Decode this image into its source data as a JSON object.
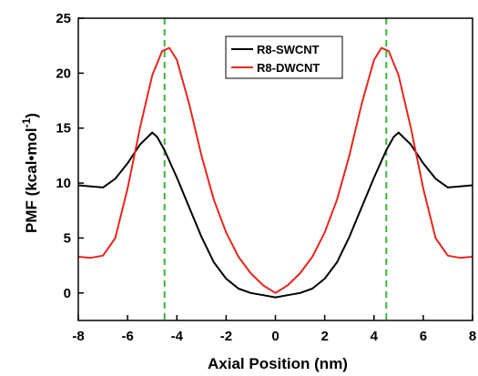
{
  "chart_data": {
    "type": "line",
    "title": "",
    "xlabel": "Axial Position (nm)",
    "ylabel_main": "PMF (kcal•mol",
    "ylabel_sup": "-1",
    "ylabel_close": ")",
    "xlim": [
      -8,
      8
    ],
    "ylim": [
      -2.5,
      25
    ],
    "xticks": [
      -8,
      -6,
      -4,
      -2,
      0,
      2,
      4,
      6,
      8
    ],
    "yticks": [
      0,
      5,
      10,
      15,
      20,
      25
    ],
    "legend_position": "top-center",
    "vlines": {
      "x": [
        -4.5,
        4.5
      ],
      "color": "#3cb33c",
      "style": "dashed"
    },
    "series": [
      {
        "name": "R8-SWCNT",
        "color": "#000000",
        "x": [
          -8,
          -7.5,
          -7,
          -6.5,
          -6,
          -5.5,
          -5,
          -4.8,
          -4.5,
          -4,
          -3.5,
          -3,
          -2.5,
          -2,
          -1.5,
          -1,
          -0.5,
          0,
          0.5,
          1,
          1.5,
          2,
          2.5,
          3,
          3.5,
          4,
          4.5,
          4.8,
          5,
          5.5,
          6,
          6.5,
          7,
          7.5,
          8
        ],
        "values": [
          9.8,
          9.7,
          9.6,
          10.4,
          11.8,
          13.5,
          14.6,
          14.2,
          13.0,
          10.5,
          7.8,
          5.1,
          2.8,
          1.3,
          0.4,
          0.0,
          -0.2,
          -0.4,
          -0.2,
          0.0,
          0.4,
          1.3,
          2.8,
          5.1,
          7.8,
          10.5,
          13.0,
          14.2,
          14.6,
          13.5,
          11.8,
          10.4,
          9.6,
          9.7,
          9.8
        ]
      },
      {
        "name": "R8-DWCNT",
        "color": "#e8251e",
        "x": [
          -8,
          -7.5,
          -7,
          -6.5,
          -6,
          -5.5,
          -5,
          -4.6,
          -4.3,
          -4,
          -3.5,
          -3,
          -2.5,
          -2,
          -1.5,
          -1,
          -0.5,
          0,
          0.5,
          1,
          1.5,
          2,
          2.5,
          3,
          3.5,
          4,
          4.3,
          4.6,
          5,
          5.5,
          6,
          6.5,
          7,
          7.5,
          8
        ],
        "values": [
          3.3,
          3.2,
          3.4,
          5.0,
          9.5,
          15.0,
          19.8,
          22.0,
          22.3,
          21.2,
          17.2,
          12.5,
          8.5,
          5.5,
          3.3,
          1.8,
          0.7,
          0.0,
          0.7,
          1.8,
          3.3,
          5.5,
          8.5,
          12.5,
          17.2,
          21.2,
          22.3,
          22.0,
          19.8,
          15.0,
          9.5,
          5.0,
          3.4,
          3.2,
          3.3
        ]
      }
    ]
  }
}
